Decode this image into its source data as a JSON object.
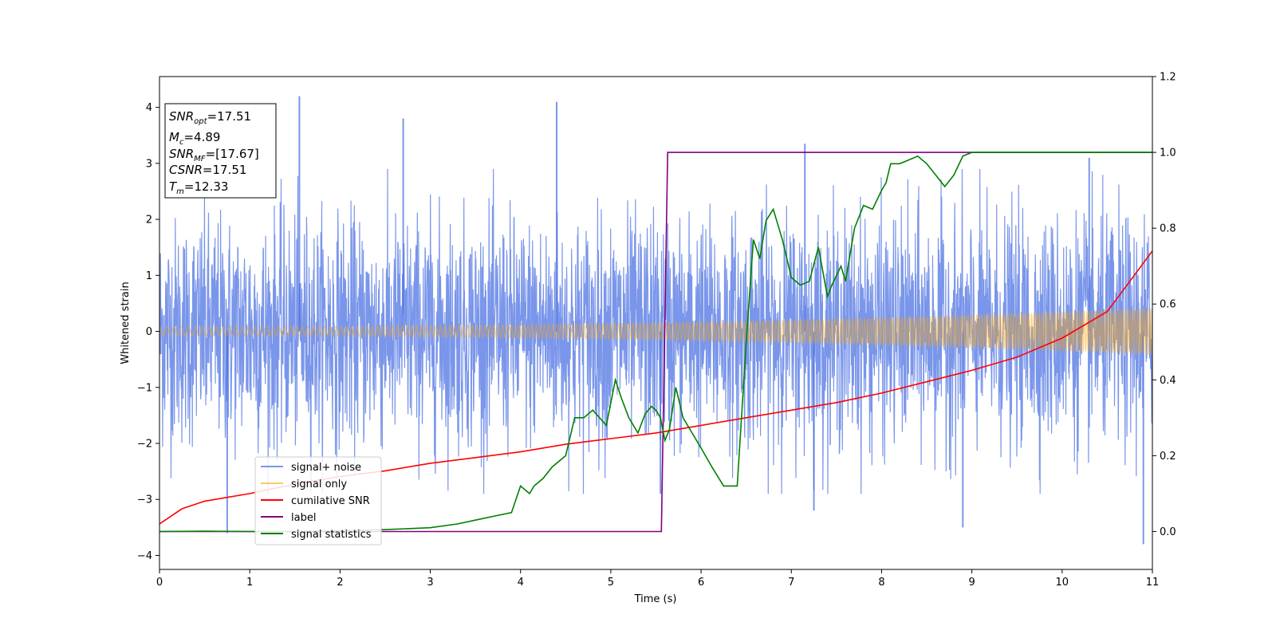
{
  "chart_data": {
    "type": "line",
    "xlabel": "Time (s)",
    "ylabel": "Whitened strain",
    "xlim": [
      0,
      11
    ],
    "ylim": [
      -4.25,
      4.55
    ],
    "y2lim": [
      -0.1,
      1.2
    ],
    "x_ticks": [
      0,
      1,
      2,
      3,
      4,
      5,
      6,
      7,
      8,
      9,
      10,
      11
    ],
    "y_ticks": [
      -4,
      -3,
      -2,
      -1,
      0,
      1,
      2,
      3,
      4
    ],
    "y2_ticks": [
      0.0,
      0.2,
      0.4,
      0.6,
      0.8,
      1.0,
      1.2
    ],
    "legend_position": "lower-left",
    "legend": [
      "signal+ noise",
      "signal only",
      "cumilative SNR",
      "label",
      "signal statistics"
    ],
    "colors": {
      "signal_noise": "#4169e1",
      "signal_only": "#ffa500",
      "cumulative_snr": "#ff0000",
      "label": "#800080",
      "signal_statistics": "#008000"
    },
    "annotations": {
      "snr_opt_value": "17.51",
      "mc_value": "4.89",
      "snr_mf_value": "[17.67]",
      "csnr_value": "17.51",
      "tm_value": "12.33"
    },
    "series": [
      {
        "name": "signal+ noise",
        "axis": "left",
        "style": "dense noise",
        "band_y": [
          -2.0,
          2.0
        ],
        "spikes": [
          {
            "x": 0.75,
            "y": -3.6
          },
          {
            "x": 1.55,
            "y": 4.2
          },
          {
            "x": 2.7,
            "y": 3.8
          },
          {
            "x": 4.4,
            "y": 4.1
          },
          {
            "x": 5.55,
            "y": -2.9
          },
          {
            "x": 7.15,
            "y": 3.35
          },
          {
            "x": 7.25,
            "y": -3.2
          },
          {
            "x": 8.9,
            "y": -3.5
          },
          {
            "x": 10.3,
            "y": 3.1
          },
          {
            "x": 10.9,
            "y": -3.8
          }
        ]
      },
      {
        "name": "signal only",
        "axis": "left",
        "style": "chirp",
        "amplitude_start": 0.08,
        "amplitude_end": 0.42
      },
      {
        "name": "cumilative SNR",
        "axis": "right",
        "x": [
          0,
          0.25,
          0.5,
          1,
          1.5,
          2,
          2.5,
          3,
          3.5,
          4,
          4.5,
          5,
          5.5,
          6,
          6.5,
          7,
          7.5,
          8,
          8.5,
          9,
          9.5,
          10,
          10.5,
          11
        ],
        "y": [
          0.02,
          0.06,
          0.08,
          0.1,
          0.125,
          0.145,
          0.16,
          0.18,
          0.195,
          0.21,
          0.23,
          0.245,
          0.26,
          0.28,
          0.3,
          0.32,
          0.34,
          0.365,
          0.395,
          0.425,
          0.46,
          0.51,
          0.58,
          0.74
        ]
      },
      {
        "name": "label",
        "axis": "right",
        "x": [
          0,
          5.56,
          5.63,
          11
        ],
        "y": [
          0,
          0,
          1,
          1
        ]
      },
      {
        "name": "signal statistics",
        "axis": "right",
        "x": [
          0,
          0.5,
          1,
          1.5,
          2,
          2.5,
          3,
          3.3,
          3.5,
          3.7,
          3.9,
          4.0,
          4.1,
          4.15,
          4.25,
          4.35,
          4.5,
          4.6,
          4.7,
          4.8,
          4.95,
          5.05,
          5.12,
          5.2,
          5.3,
          5.38,
          5.45,
          5.5,
          5.55,
          5.6,
          5.65,
          5.72,
          5.8,
          5.9,
          6.0,
          6.12,
          6.25,
          6.4,
          6.5,
          6.58,
          6.65,
          6.72,
          6.8,
          6.9,
          7.0,
          7.1,
          7.2,
          7.3,
          7.4,
          7.45,
          7.55,
          7.6,
          7.7,
          7.8,
          7.9,
          8.0,
          8.05,
          8.1,
          8.2,
          8.3,
          8.4,
          8.5,
          8.6,
          8.7,
          8.8,
          8.9,
          9.0,
          9.5,
          10,
          10.5,
          11
        ],
        "y": [
          0.0,
          0.001,
          0.0,
          0.0,
          0.002,
          0.005,
          0.01,
          0.02,
          0.03,
          0.04,
          0.05,
          0.12,
          0.1,
          0.12,
          0.14,
          0.17,
          0.2,
          0.3,
          0.3,
          0.32,
          0.28,
          0.4,
          0.35,
          0.3,
          0.26,
          0.31,
          0.33,
          0.32,
          0.3,
          0.24,
          0.27,
          0.38,
          0.3,
          0.26,
          0.22,
          0.17,
          0.12,
          0.12,
          0.5,
          0.77,
          0.72,
          0.82,
          0.85,
          0.77,
          0.67,
          0.65,
          0.66,
          0.75,
          0.62,
          0.65,
          0.7,
          0.66,
          0.8,
          0.86,
          0.85,
          0.9,
          0.92,
          0.97,
          0.97,
          0.98,
          0.99,
          0.97,
          0.94,
          0.91,
          0.94,
          0.99,
          1.0,
          1.0,
          1.0,
          1.0,
          1.0
        ]
      }
    ]
  }
}
